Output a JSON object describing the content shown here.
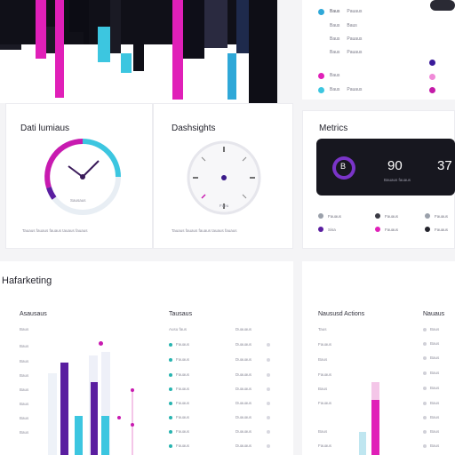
{
  "cards": {
    "card1": {
      "title": "Dati lumiaus",
      "footer": "Tauaus fauaus fauaus tauaus fauaus"
    },
    "card2": {
      "title": "Dashsights",
      "footer": "Tauaus fauaus fauaus tauaus fauaus",
      "clock_label": "Fueu"
    },
    "metrics": {
      "title": "Metrics",
      "icon_letter": "B",
      "value1": "90",
      "value2": "37",
      "sub_label": "Bauaus fauaus",
      "legend": [
        "Fauaus",
        "Fauaus",
        "Fauaus",
        "Sisa",
        "Fauaus",
        "Fauaus"
      ]
    }
  },
  "gauge_text": "Sausaus",
  "toplist": {
    "rows": [
      "Pauaus",
      "Baus",
      "Pauaus",
      "Pauaus"
    ],
    "cols": [
      "Baus",
      "Baus",
      "Baus",
      "Baus"
    ]
  },
  "marketing": {
    "title": "Hafarketing",
    "col1_head": "Asausaus",
    "col2_head": "Tausaus",
    "col3_head": "Naususd Actions",
    "col4_head": "Nauaus",
    "axis_labels": [
      "Baus",
      "Baus",
      "Baus",
      "Baus",
      "Baus",
      "Baus",
      "Baus",
      "Baus"
    ],
    "table_head_a": "Ausu faus",
    "table_head_b": "Duauaus",
    "table_rows": [
      "Fauaus",
      "Fauaus",
      "Fauaus",
      "Fauaus",
      "Fauaus",
      "Fauaus",
      "Fauaus",
      "Fauaus"
    ],
    "table_vals": [
      "Duauaus",
      "Duauaus",
      "Duauaus",
      "Duauaus",
      "Duauaus",
      "Duauaus",
      "Duauaus",
      "Duauaus"
    ],
    "actions_rows": [
      "Taus",
      "Fauaus",
      "Baus",
      "Fauaus",
      "Baus",
      "Fauaus",
      "Baus",
      "Fauaus"
    ],
    "right_rows": [
      "Baus",
      "Baus",
      "Baus",
      "Baus",
      "Baus",
      "Baus",
      "Baus",
      "Baus",
      "Baus"
    ]
  },
  "colors": {
    "magenta": "#e020b8",
    "cyan": "#3cc6e0",
    "purple": "#5a1ea0",
    "dark": "#17171f",
    "teal": "#28b4b0"
  }
}
